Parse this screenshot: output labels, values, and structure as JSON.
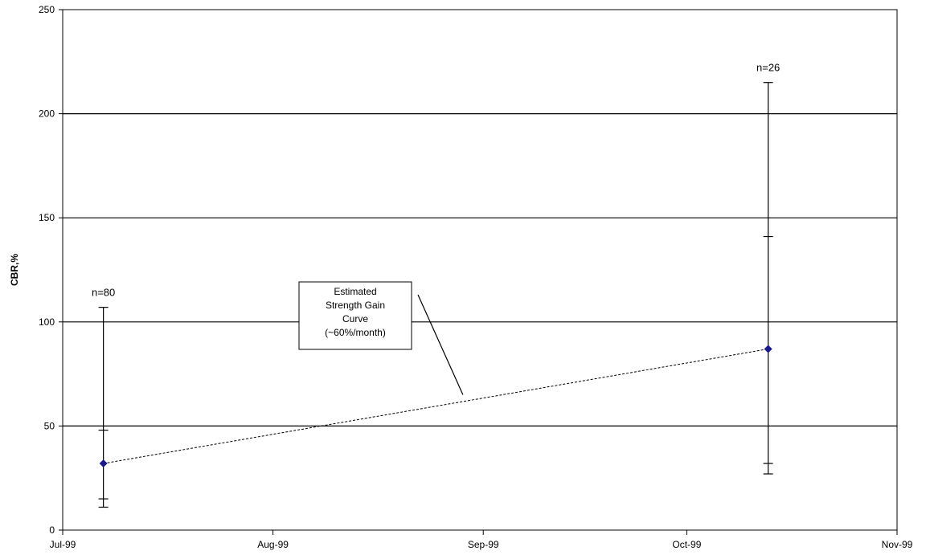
{
  "chart_data": {
    "type": "scatter",
    "title": "",
    "xlabel": "",
    "ylabel": "CBR,%",
    "x_ticks": [
      "Jul-99",
      "Aug-99",
      "Sep-99",
      "Oct-99",
      "Nov-99"
    ],
    "x_tick_dates": [
      "1999-07-01",
      "1999-08-01",
      "1999-09-01",
      "1999-10-01",
      "1999-11-01"
    ],
    "xlim": [
      "1999-07-01",
      "1999-11-01"
    ],
    "ylim": [
      0,
      250
    ],
    "y_ticks": [
      0,
      50,
      100,
      150,
      200,
      250
    ],
    "y_tick_labels": [
      "0",
      "50",
      "100",
      "150",
      "200",
      "250"
    ],
    "grid": "horizontal major gridlines",
    "marker_color": "#1a1a8c",
    "series": [
      {
        "points": [
          {
            "x": "1999-07-07",
            "y": 32,
            "inner_low": 15,
            "inner_high": 48,
            "outer_low": 11,
            "outer_high": 107,
            "n_label": "n=80"
          },
          {
            "x": "1999-10-13",
            "y": 87,
            "inner_low": 32,
            "inner_high": 141,
            "outer_low": 27,
            "outer_high": 215,
            "n_label": "n=26"
          }
        ]
      }
    ],
    "trend_line": {
      "style": "dashed",
      "from": {
        "x": "1999-07-07",
        "y": 32
      },
      "to": {
        "x": "1999-10-13",
        "y": 87
      }
    },
    "annotation": {
      "lines": [
        "Estimated",
        "Strength Gain",
        "Curve",
        "(~60%/month)"
      ],
      "points_to": {
        "x": "1999-08-29",
        "y": 65
      }
    }
  }
}
